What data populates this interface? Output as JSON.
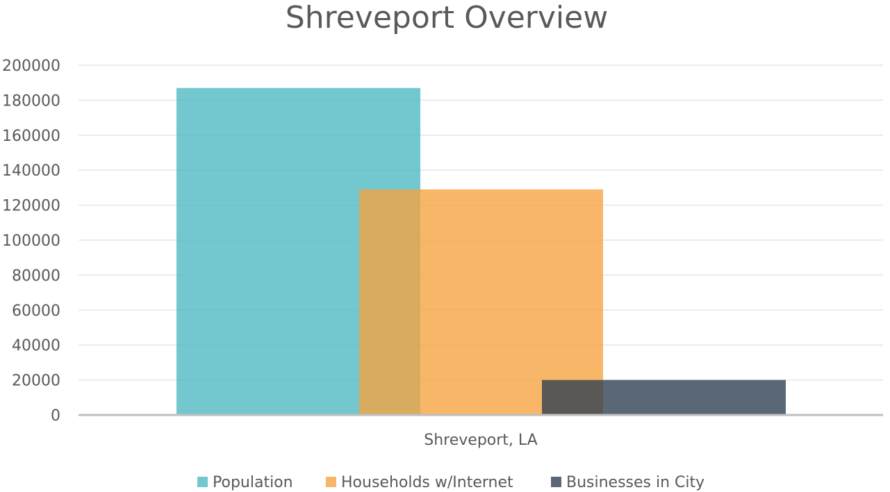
{
  "chart_data": {
    "type": "bar",
    "title": "Shreveport Overview",
    "categories": [
      "Shreveport, LA"
    ],
    "series": [
      {
        "name": "Population",
        "values": [
          187000
        ],
        "color": "#4BB8C1"
      },
      {
        "name": "Households w/Internet",
        "values": [
          129000
        ],
        "color": "#F6A33E"
      },
      {
        "name": "Businesses in City",
        "values": [
          20000
        ],
        "color": "#2C3E50"
      }
    ],
    "ylim": [
      0,
      200000
    ],
    "yticks": [
      "0",
      "20000",
      "40000",
      "60000",
      "80000",
      "100000",
      "120000",
      "140000",
      "160000",
      "180000",
      "200000"
    ],
    "grid": true,
    "legend_position": "bottom",
    "bar_opacity": 0.78
  }
}
